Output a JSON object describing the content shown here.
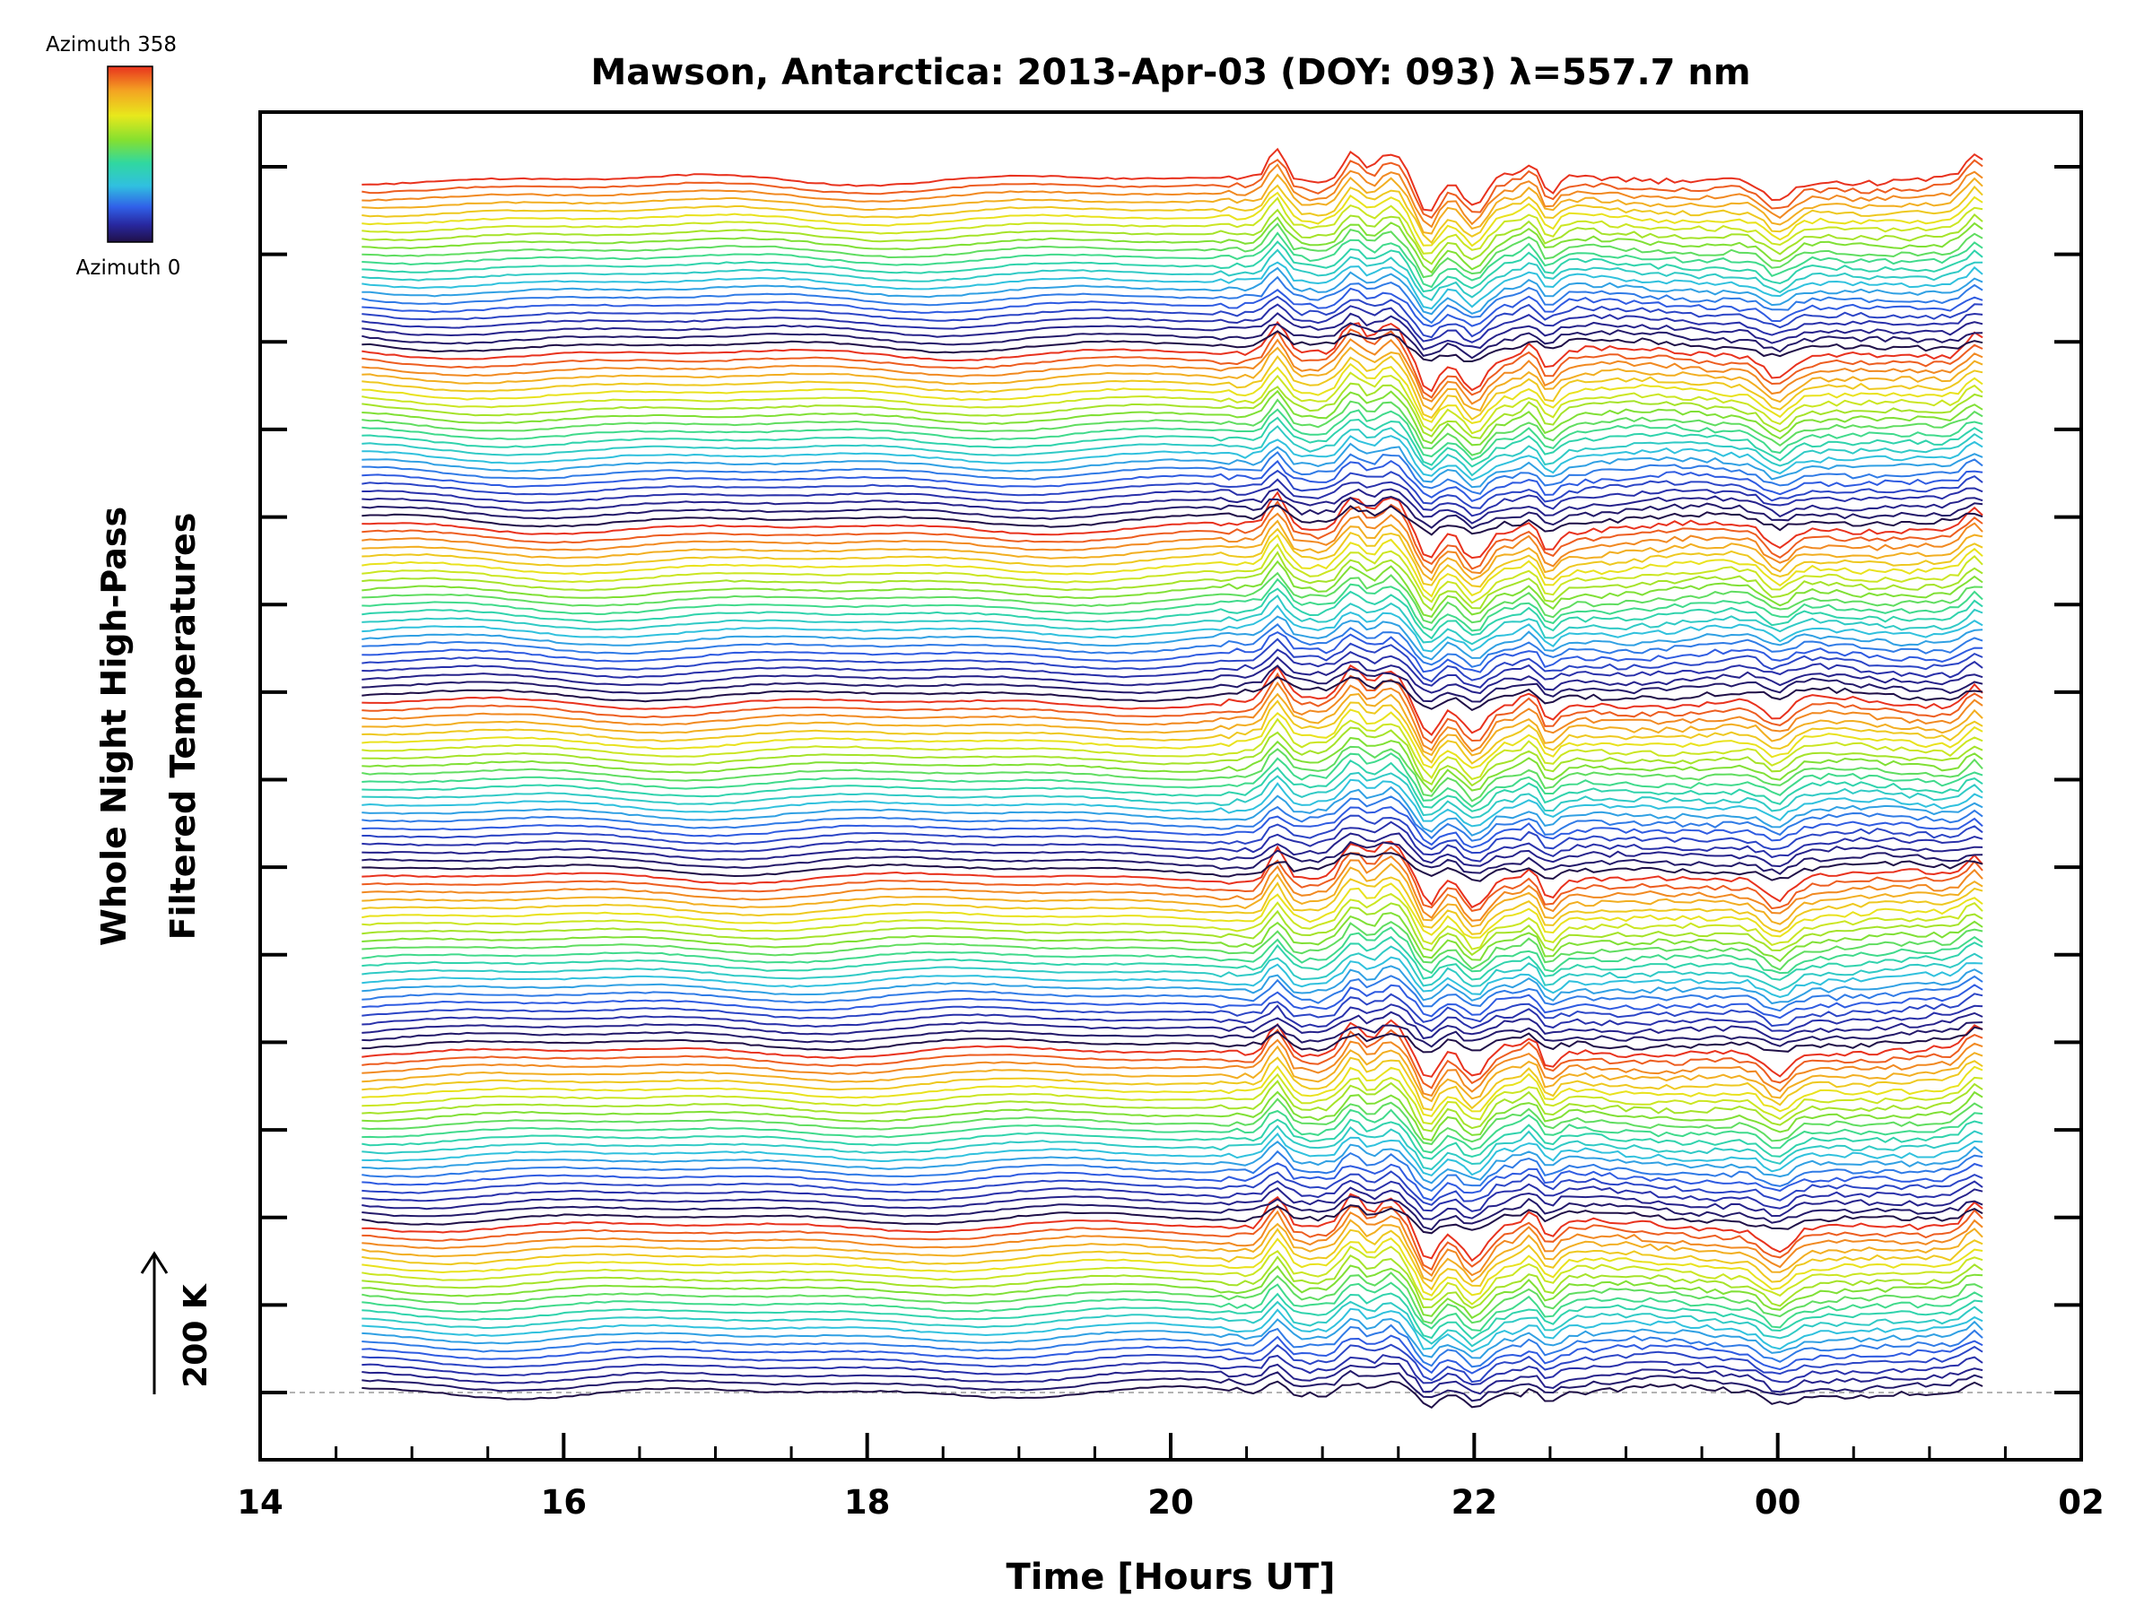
{
  "chart_data": {
    "type": "line",
    "title": "Mawson, Antarctica: 2013-Apr-03 (DOY: 093) λ=557.7 nm",
    "xlabel": "Time [Hours UT]",
    "ylabel_line1": "Whole Night High-Pass",
    "ylabel_line2": "Filtered Temperatures",
    "x_ticks": [
      "14",
      "16",
      "18",
      "20",
      "22",
      "00",
      "02"
    ],
    "xlim_hours": [
      14,
      26
    ],
    "data_time_range_hours": [
      14.67,
      25.35
    ],
    "y_ticks_count": 15,
    "scale_bar_label": "200 K",
    "colorbar": {
      "top_label": "Azimuth 358",
      "bottom_label": "Azimuth 0",
      "colors": [
        "#e8321e",
        "#f4a422",
        "#e8e81c",
        "#84e030",
        "#30d8a0",
        "#30c0e0",
        "#3060e8",
        "#2828a0",
        "#201048"
      ]
    },
    "series_description": "Stacked high-pass filtered temperature traces, one per azimuth, colour-coded by azimuth (0 to 358), offset vertically",
    "stack_count": 7,
    "traces_per_stack": 22,
    "features": [
      {
        "time": 20.7,
        "kind": "peak"
      },
      {
        "time": 21.2,
        "kind": "peak"
      },
      {
        "time": 21.45,
        "kind": "peak"
      },
      {
        "time": 21.7,
        "kind": "trough"
      },
      {
        "time": 22.0,
        "kind": "trough"
      },
      {
        "time": 22.4,
        "kind": "peak"
      },
      {
        "time": 22.45,
        "kind": "trough"
      },
      {
        "time": 24.0,
        "kind": "trough"
      },
      {
        "time": 25.3,
        "kind": "peak"
      }
    ]
  }
}
